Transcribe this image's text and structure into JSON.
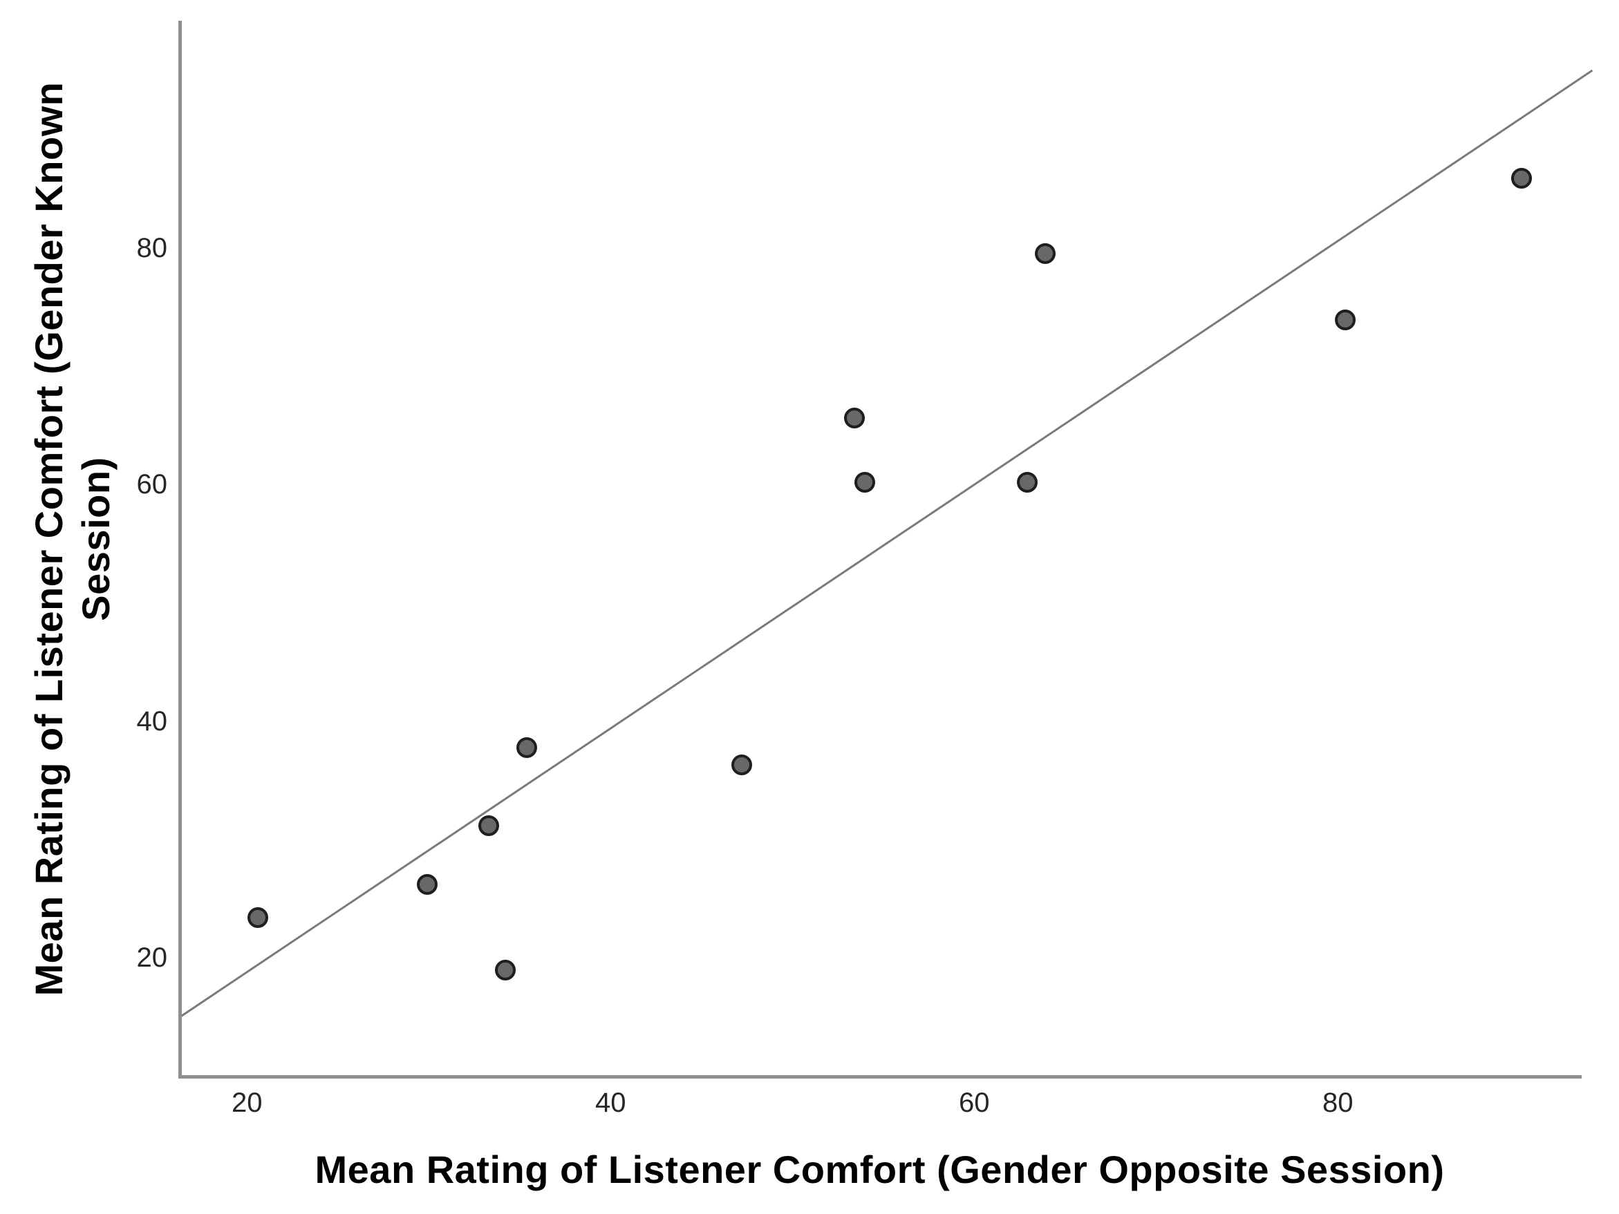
{
  "chart_data": {
    "type": "scatter",
    "title": "",
    "xlabel": "Mean Rating of Listener Comfort (Gender Opposite Session)",
    "ylabel": "Mean Rating of Listener Comfort (Gender Known Session)",
    "ylabel_lines": [
      "Mean Rating of Listener Comfort (Gender Known",
      "Session)"
    ],
    "xlim": [
      16.3,
      93.3
    ],
    "ylim": [
      10.1,
      99.2
    ],
    "x_ticks": [
      "20",
      "40",
      "60",
      "80"
    ],
    "y_ticks": [
      "20",
      "40",
      "60",
      "80"
    ],
    "grid": false,
    "legend": false,
    "points": [
      {
        "x": 20.6,
        "y": 23.4
      },
      {
        "x": 29.9,
        "y": 26.2
      },
      {
        "x": 33.3,
        "y": 31.2
      },
      {
        "x": 34.2,
        "y": 19.0
      },
      {
        "x": 35.4,
        "y": 37.8
      },
      {
        "x": 47.2,
        "y": 36.3
      },
      {
        "x": 53.4,
        "y": 65.6
      },
      {
        "x": 54.0,
        "y": 60.2
      },
      {
        "x": 62.9,
        "y": 60.2
      },
      {
        "x": 63.9,
        "y": 79.5
      },
      {
        "x": 80.4,
        "y": 73.9
      },
      {
        "x": 90.1,
        "y": 85.9
      }
    ],
    "trendline": {
      "x1": 16.3,
      "y1": 15.0,
      "x2": 94.0,
      "y2": 95.0
    },
    "colors": {
      "dot_fill": "#686868",
      "dot_border": "#1e1e1e",
      "trend_line": "#7a7a7a",
      "axis_line": "#8f8f8f",
      "tick_text": "#262626",
      "label_text": "#000000"
    }
  }
}
